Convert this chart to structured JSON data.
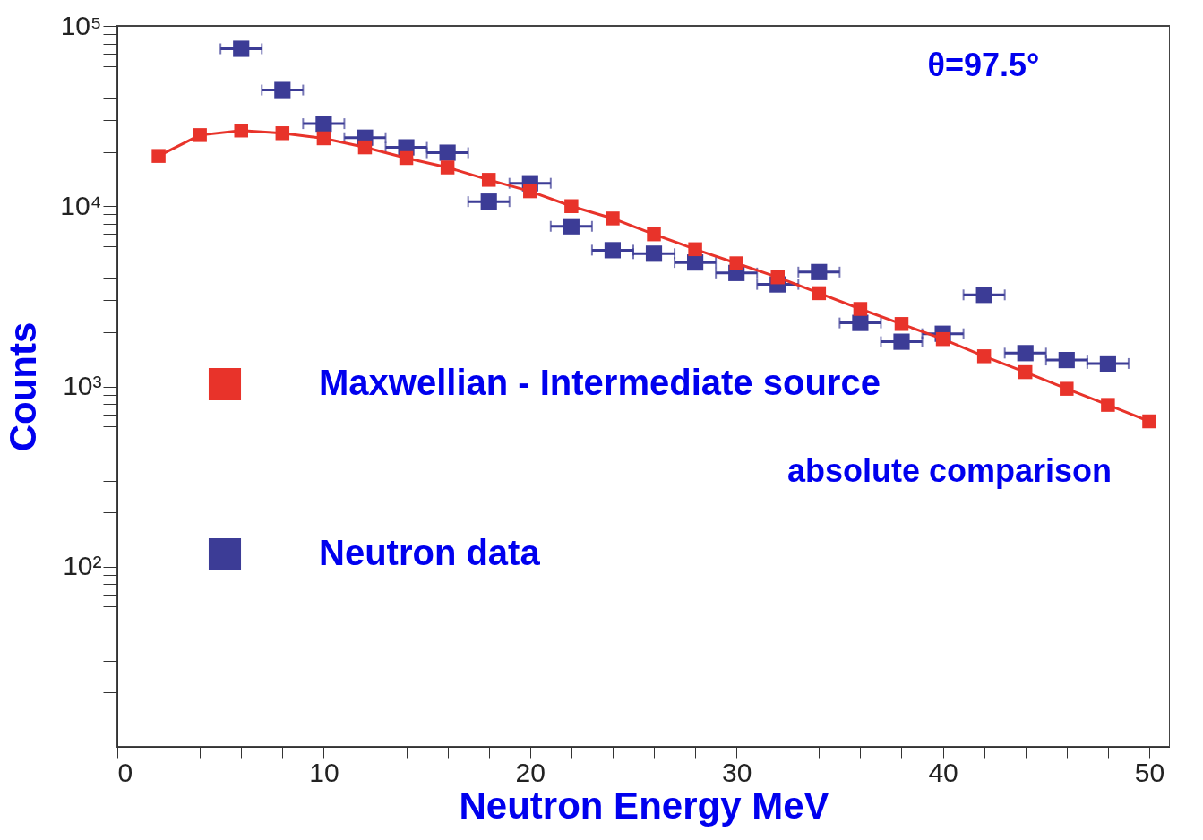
{
  "chart_data": {
    "type": "line",
    "xlabel": "Neutron Energy MeV",
    "ylabel": "Counts",
    "annotations": [
      "θ=97.5°",
      "absolute comparison"
    ],
    "log": "y",
    "grid": false,
    "legend": "left",
    "marker": "square",
    "line_style": "solid",
    "xlim": [
      0,
      51
    ],
    "ylim": [
      10,
      100000
    ],
    "xticks": [
      0,
      {
        "value": 2,
        "label": null
      },
      {
        "value": 4,
        "label": null
      },
      {
        "value": 6,
        "label": null
      },
      {
        "value": 8,
        "label": null
      },
      10,
      {
        "value": 12,
        "label": null
      },
      {
        "value": 14,
        "label": null
      },
      {
        "value": 16,
        "label": null
      },
      {
        "value": 18,
        "label": null
      },
      20,
      {
        "value": 22,
        "label": null
      },
      {
        "value": 24,
        "label": null
      },
      {
        "value": 26,
        "label": null
      },
      {
        "value": 28,
        "label": null
      },
      30,
      {
        "value": 32,
        "label": null
      },
      {
        "value": 34,
        "label": null
      },
      {
        "value": 36,
        "label": null
      },
      {
        "value": 38,
        "label": null
      },
      40,
      {
        "value": 42,
        "label": null
      },
      {
        "value": 44,
        "label": null
      },
      {
        "value": 46,
        "label": null
      },
      {
        "value": 48,
        "label": null
      },
      50
    ],
    "yticks": [
      {
        "value": 20,
        "label": null
      },
      {
        "value": 30,
        "label": null
      },
      {
        "value": 40,
        "label": null
      },
      {
        "value": 50,
        "label": null
      },
      {
        "value": 60,
        "label": null
      },
      {
        "value": 70,
        "label": null
      },
      {
        "value": 80,
        "label": null
      },
      {
        "value": 90,
        "label": null
      },
      {
        "value": 100,
        "label": "10²"
      },
      {
        "value": 200,
        "label": null
      },
      {
        "value": 300,
        "label": null
      },
      {
        "value": 400,
        "label": null
      },
      {
        "value": 500,
        "label": null
      },
      {
        "value": 600,
        "label": null
      },
      {
        "value": 700,
        "label": null
      },
      {
        "value": 800,
        "label": null
      },
      {
        "value": 900,
        "label": null
      },
      {
        "value": 1000,
        "label": "10³"
      },
      {
        "value": 2000,
        "label": null
      },
      {
        "value": 3000,
        "label": null
      },
      {
        "value": 4000,
        "label": null
      },
      {
        "value": 5000,
        "label": null
      },
      {
        "value": 6000,
        "label": null
      },
      {
        "value": 7000,
        "label": null
      },
      {
        "value": 8000,
        "label": null
      },
      {
        "value": 9000,
        "label": null
      },
      {
        "value": 10000,
        "label": "10⁴"
      },
      {
        "value": 20000,
        "label": null
      },
      {
        "value": 30000,
        "label": null
      },
      {
        "value": 40000,
        "label": null
      },
      {
        "value": 50000,
        "label": null
      },
      {
        "value": 60000,
        "label": null
      },
      {
        "value": 70000,
        "label": null
      },
      {
        "value": 80000,
        "label": null
      },
      {
        "value": 90000,
        "label": null
      },
      {
        "value": 100000,
        "label": "10⁵"
      }
    ],
    "series": [
      {
        "name": "Maxwellian - Intermediate source",
        "color": "#e8332a",
        "x": [
          2,
          4,
          6,
          8,
          10,
          12,
          14,
          16,
          18,
          20,
          22,
          24,
          26,
          28,
          30,
          32,
          34,
          36,
          38,
          40,
          42,
          44,
          46,
          48,
          50
        ],
        "values": [
          19000,
          24800,
          26300,
          25400,
          23800,
          21200,
          18500,
          16400,
          14000,
          12100,
          10000,
          8550,
          6980,
          5770,
          4820,
          4030,
          3290,
          2690,
          2220,
          1830,
          1470,
          1200,
          970,
          790,
          640
        ]
      },
      {
        "name": "Neutron data",
        "type": "scatter",
        "color": "#3c3c96",
        "x": [
          6,
          8,
          10,
          12,
          14,
          16,
          18,
          20,
          22,
          24,
          26,
          28,
          30,
          32,
          34,
          36,
          38,
          40,
          42,
          44,
          46,
          48
        ],
        "values": [
          74700,
          44100,
          28700,
          24000,
          21200,
          19800,
          10600,
          13400,
          7730,
          5700,
          5450,
          4870,
          4260,
          3680,
          4310,
          2250,
          1770,
          1960,
          3220,
          1530,
          1400,
          1340
        ],
        "xerrors": [
          1,
          1,
          1,
          1,
          1,
          1,
          1,
          1,
          1,
          1,
          1,
          1,
          1,
          1,
          1,
          1,
          1,
          1,
          1,
          1,
          1,
          1
        ]
      }
    ]
  }
}
